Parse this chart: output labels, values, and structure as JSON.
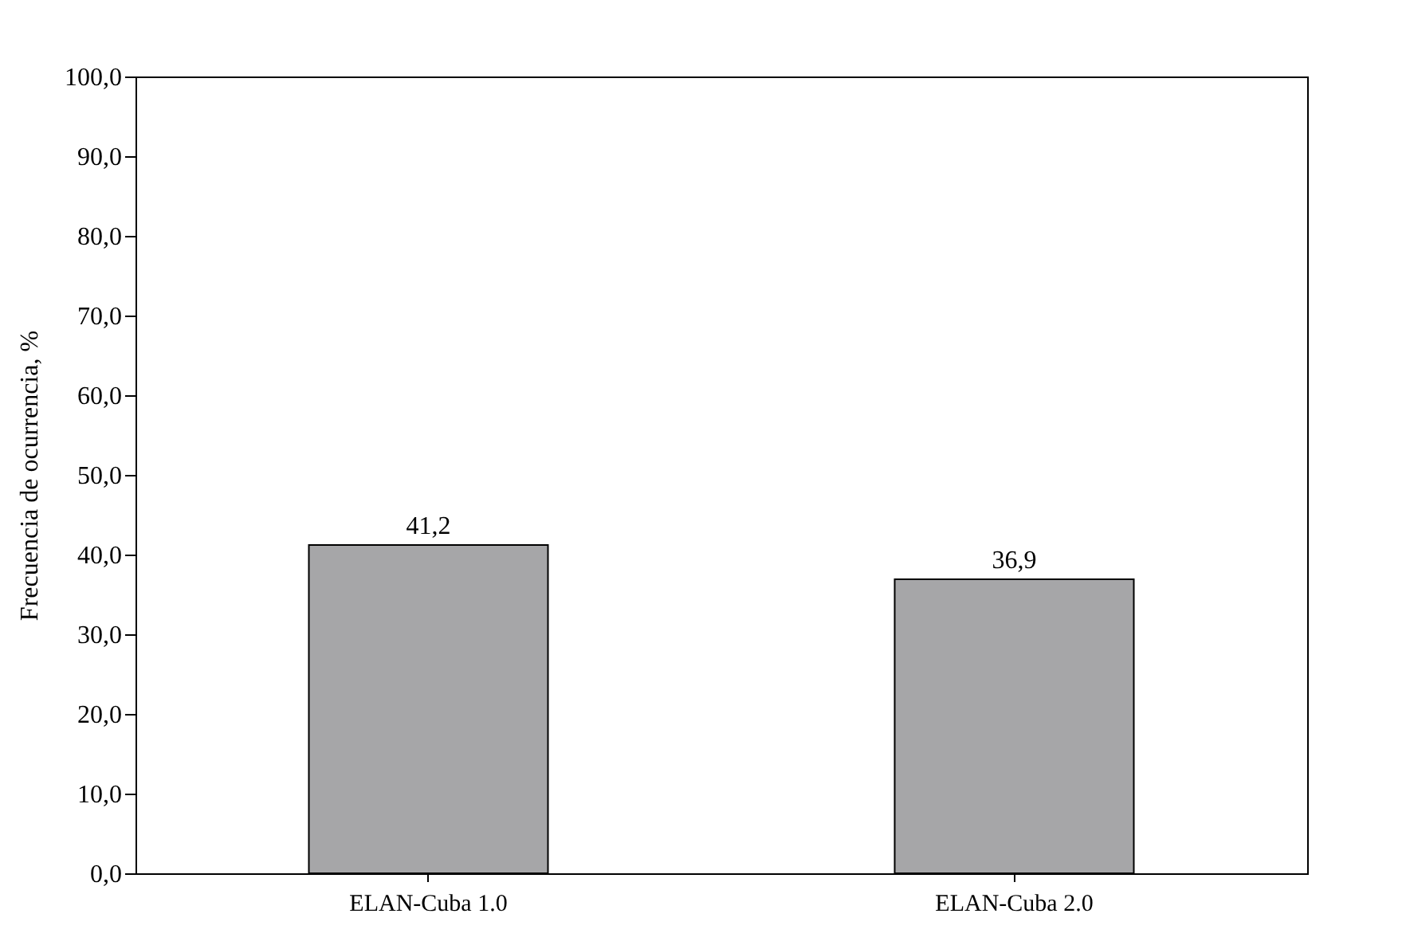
{
  "chart_data": {
    "type": "bar",
    "ylabel": "Frecuencia de ocurrencia, %",
    "categories": [
      "ELAN-Cuba 1.0",
      "ELAN-Cuba 2.0"
    ],
    "values": [
      41.2,
      36.9
    ],
    "color": "#a6a6a8",
    "value_labels": [
      "41,2",
      "36,9"
    ],
    "ylim": [
      0,
      100
    ],
    "yticks": [
      {
        "value": 0,
        "label": "0,0"
      },
      {
        "value": 10,
        "label": "10,0"
      },
      {
        "value": 20,
        "label": "20,0"
      },
      {
        "value": 30,
        "label": "30,0"
      },
      {
        "value": 40,
        "label": "40,0"
      },
      {
        "value": 50,
        "label": "50,0"
      },
      {
        "value": 60,
        "label": "60,0"
      },
      {
        "value": 70,
        "label": "70,0"
      },
      {
        "value": 80,
        "label": "80,0"
      },
      {
        "value": 90,
        "label": "90,0"
      },
      {
        "value": 100,
        "label": "100,0"
      }
    ],
    "grid": false
  }
}
